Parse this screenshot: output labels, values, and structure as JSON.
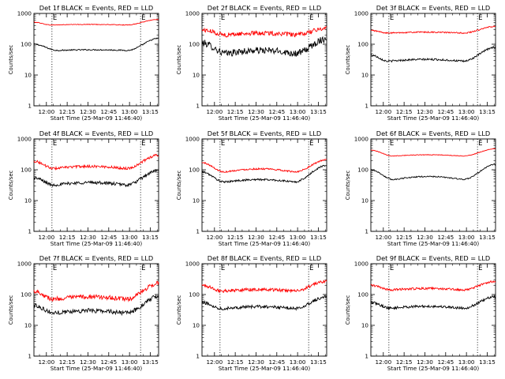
{
  "chart_data": [
    {
      "type": "line",
      "title": "Det 1f BLACK = Events, RED = LLD",
      "xlabel": "Start Time (25-Mar-09 11:46:40)",
      "ylabel": "Counts/sec",
      "x_ticks": [
        "12:00",
        "12:15",
        "12:30",
        "12:45",
        "13:00",
        "13:15"
      ],
      "y_ticks": [
        "1",
        "10",
        "100",
        "1000"
      ],
      "ylim": [
        1,
        1000
      ],
      "y_scale": "log",
      "xlim": [
        "11:51",
        "13:21"
      ],
      "markers": [
        "12:04",
        "13:08"
      ],
      "marker_labels": [
        "E",
        "E"
      ],
      "series": [
        {
          "color": "#000000",
          "base": {
            "start": 100,
            "min": 63,
            "end": 155,
            "dip1": 0.19,
            "dip2": 0.75,
            "amp": 0.02,
            "noise": 0.04
          }
        },
        {
          "color": "#ff0000",
          "base": {
            "start": 520,
            "min": 420,
            "end": 640,
            "dip1": 0.14,
            "dip2": 0.74,
            "amp": 0.02,
            "noise": 0.02
          }
        }
      ]
    },
    {
      "type": "line",
      "title": "Det 2f BLACK = Events, RED = LLD",
      "xlabel": "Start Time (25-Mar-09 11:46:40)",
      "ylabel": "Counts/sec",
      "x_ticks": [
        "12:00",
        "12:15",
        "12:30",
        "12:45",
        "13:00",
        "13:15"
      ],
      "y_ticks": [
        "1",
        "10",
        "100",
        "1000"
      ],
      "ylim": [
        1,
        1000
      ],
      "y_scale": "log",
      "xlim": [
        "11:51",
        "13:21"
      ],
      "markers": [
        "12:04",
        "13:08"
      ],
      "marker_labels": [
        "E",
        "E"
      ],
      "series": [
        {
          "color": "#000000",
          "base": {
            "start": 110,
            "min": 50,
            "end": 150,
            "dip1": 0.2,
            "dip2": 0.75,
            "amp": 0.1,
            "noise": 0.22
          }
        },
        {
          "color": "#ff0000",
          "base": {
            "start": 290,
            "min": 200,
            "end": 330,
            "dip1": 0.2,
            "dip2": 0.75,
            "amp": 0.06,
            "noise": 0.14
          }
        }
      ]
    },
    {
      "type": "line",
      "title": "Det 3f BLACK = Events, RED = LLD",
      "xlabel": "Start Time (25-Mar-09 11:46:40)",
      "ylabel": "Counts/sec",
      "x_ticks": [
        "12:00",
        "12:15",
        "12:30",
        "12:45",
        "13:00",
        "13:15"
      ],
      "y_ticks": [
        "1",
        "10",
        "100",
        "1000"
      ],
      "ylim": [
        1,
        1000
      ],
      "y_scale": "log",
      "xlim": [
        "11:51",
        "13:21"
      ],
      "markers": [
        "12:04",
        "13:08"
      ],
      "marker_labels": [
        "E",
        "E"
      ],
      "series": [
        {
          "color": "#000000",
          "base": {
            "start": 45,
            "min": 28,
            "end": 80,
            "dip1": 0.14,
            "dip2": 0.74,
            "amp": 0.06,
            "noise": 0.06
          }
        },
        {
          "color": "#ff0000",
          "base": {
            "start": 280,
            "min": 230,
            "end": 380,
            "dip1": 0.14,
            "dip2": 0.74,
            "amp": 0.03,
            "noise": 0.04
          }
        }
      ]
    },
    {
      "type": "line",
      "title": "Det 4f BLACK = Events, RED = LLD",
      "xlabel": "Start Time (25-Mar-09 11:46:40)",
      "ylabel": "Counts/sec",
      "x_ticks": [
        "12:00",
        "12:15",
        "12:30",
        "12:45",
        "13:00",
        "13:15"
      ],
      "y_ticks": [
        "1",
        "10",
        "100",
        "1000"
      ],
      "ylim": [
        1,
        1000
      ],
      "y_scale": "log",
      "xlim": [
        "11:51",
        "13:21"
      ],
      "markers": [
        "12:04",
        "13:08"
      ],
      "marker_labels": [
        "E",
        "E"
      ],
      "series": [
        {
          "color": "#000000",
          "base": {
            "start": 55,
            "min": 32,
            "end": 95,
            "dip1": 0.16,
            "dip2": 0.74,
            "amp": 0.08,
            "noise": 0.1
          }
        },
        {
          "color": "#ff0000",
          "base": {
            "start": 190,
            "min": 110,
            "end": 300,
            "dip1": 0.16,
            "dip2": 0.74,
            "amp": 0.07,
            "noise": 0.08
          }
        }
      ]
    },
    {
      "type": "line",
      "title": "Det 5f BLACK = Events, RED = LLD",
      "xlabel": "Start Time (25-Mar-09 11:46:40)",
      "ylabel": "Counts/sec",
      "x_ticks": [
        "12:00",
        "12:15",
        "12:30",
        "12:45",
        "13:00",
        "13:15"
      ],
      "y_ticks": [
        "1",
        "10",
        "100",
        "1000"
      ],
      "ylim": [
        1,
        1000
      ],
      "y_scale": "log",
      "xlim": [
        "11:51",
        "13:21"
      ],
      "markers": [
        "12:04",
        "13:08"
      ],
      "marker_labels": [
        "E",
        "E"
      ],
      "series": [
        {
          "color": "#000000",
          "base": {
            "start": 85,
            "min": 40,
            "end": 140,
            "dip1": 0.18,
            "dip2": 0.74,
            "amp": 0.08,
            "noise": 0.06
          }
        },
        {
          "color": "#ff0000",
          "base": {
            "start": 170,
            "min": 85,
            "end": 210,
            "dip1": 0.18,
            "dip2": 0.74,
            "amp": 0.1,
            "noise": 0.05
          }
        }
      ]
    },
    {
      "type": "line",
      "title": "Det 6f BLACK = Events, RED = LLD",
      "xlabel": "Start Time (25-Mar-09 11:46:40)",
      "ylabel": "Counts/sec",
      "x_ticks": [
        "12:00",
        "12:15",
        "12:30",
        "12:45",
        "13:00",
        "13:15"
      ],
      "y_ticks": [
        "1",
        "10",
        "100",
        "1000"
      ],
      "ylim": [
        1,
        1000
      ],
      "y_scale": "log",
      "xlim": [
        "11:51",
        "13:21"
      ],
      "markers": [
        "12:04",
        "13:08"
      ],
      "marker_labels": [
        "E",
        "E"
      ],
      "series": [
        {
          "color": "#000000",
          "base": {
            "start": 100,
            "min": 48,
            "end": 150,
            "dip1": 0.18,
            "dip2": 0.74,
            "amp": 0.1,
            "noise": 0.04
          }
        },
        {
          "color": "#ff0000",
          "base": {
            "start": 430,
            "min": 280,
            "end": 480,
            "dip1": 0.18,
            "dip2": 0.74,
            "amp": 0.04,
            "noise": 0.02
          }
        }
      ]
    },
    {
      "type": "line",
      "title": "Det 7f BLACK = Events, RED = LLD",
      "xlabel": "Start Time (25-Mar-09 11:46:40)",
      "ylabel": "Counts/sec",
      "x_ticks": [
        "12:00",
        "12:15",
        "12:30",
        "12:45",
        "13:00",
        "13:15"
      ],
      "y_ticks": [
        "1",
        "10",
        "100",
        "1000"
      ],
      "ylim": [
        1,
        1000
      ],
      "y_scale": "log",
      "xlim": [
        "11:51",
        "13:21"
      ],
      "markers": [
        "12:04",
        "13:08"
      ],
      "marker_labels": [
        "E",
        "E"
      ],
      "series": [
        {
          "color": "#000000",
          "base": {
            "start": 45,
            "min": 25,
            "end": 85,
            "dip1": 0.16,
            "dip2": 0.74,
            "amp": 0.08,
            "noise": 0.14
          }
        },
        {
          "color": "#ff0000",
          "base": {
            "start": 130,
            "min": 70,
            "end": 230,
            "dip1": 0.16,
            "dip2": 0.74,
            "amp": 0.08,
            "noise": 0.14
          }
        }
      ]
    },
    {
      "type": "line",
      "title": "Det 8f BLACK = Events, RED = LLD",
      "xlabel": "Start Time (25-Mar-09 11:46:40)",
      "ylabel": "Counts/sec",
      "x_ticks": [
        "12:00",
        "12:15",
        "12:30",
        "12:45",
        "13:00",
        "13:15"
      ],
      "y_ticks": [
        "1",
        "10",
        "100",
        "1000"
      ],
      "ylim": [
        1,
        1000
      ],
      "y_scale": "log",
      "xlim": [
        "11:51",
        "13:21"
      ],
      "markers": [
        "12:04",
        "13:08"
      ],
      "marker_labels": [
        "E",
        "E"
      ],
      "series": [
        {
          "color": "#000000",
          "base": {
            "start": 55,
            "min": 35,
            "end": 85,
            "dip1": 0.16,
            "dip2": 0.74,
            "amp": 0.06,
            "noise": 0.1
          }
        },
        {
          "color": "#ff0000",
          "base": {
            "start": 200,
            "min": 130,
            "end": 270,
            "dip1": 0.16,
            "dip2": 0.74,
            "amp": 0.05,
            "noise": 0.1
          }
        }
      ]
    },
    {
      "type": "line",
      "title": "Det 9f BLACK = Events, RED = LLD",
      "xlabel": "Start Time (25-Mar-09 11:46:40)",
      "ylabel": "Counts/sec",
      "x_ticks": [
        "12:00",
        "12:15",
        "12:30",
        "12:45",
        "13:00",
        "13:15"
      ],
      "y_ticks": [
        "1",
        "10",
        "100",
        "1000"
      ],
      "ylim": [
        1,
        1000
      ],
      "y_scale": "log",
      "xlim": [
        "11:51",
        "13:21"
      ],
      "markers": [
        "12:04",
        "13:08"
      ],
      "marker_labels": [
        "E",
        "E"
      ],
      "series": [
        {
          "color": "#000000",
          "base": {
            "start": 55,
            "min": 36,
            "end": 85,
            "dip1": 0.16,
            "dip2": 0.74,
            "amp": 0.06,
            "noise": 0.08
          }
        },
        {
          "color": "#ff0000",
          "base": {
            "start": 200,
            "min": 140,
            "end": 270,
            "dip1": 0.16,
            "dip2": 0.74,
            "amp": 0.05,
            "noise": 0.07
          }
        }
      ]
    }
  ]
}
